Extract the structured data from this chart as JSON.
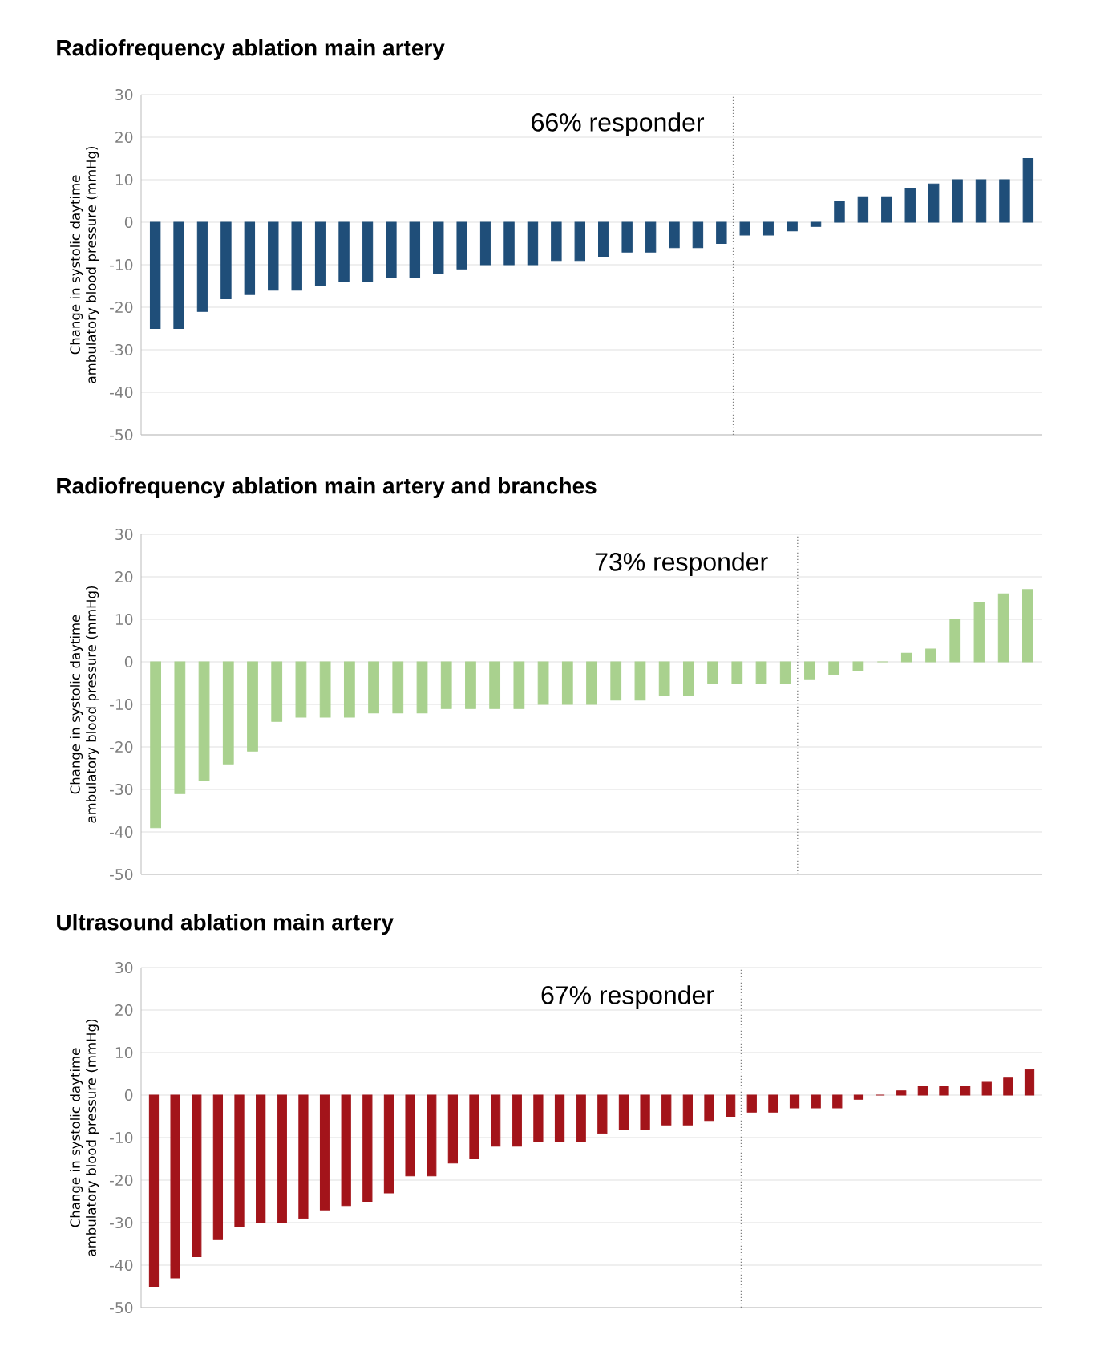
{
  "chart_data": [
    {
      "type": "bar",
      "title": "Radiofrequency ablation main artery",
      "ylabel": "Change in systolic daytime ambulatory blood pressure (mmHg)",
      "categories": [
        null,
        null,
        null,
        null,
        null,
        null,
        null,
        null,
        null,
        null,
        null,
        null,
        null,
        null,
        null,
        null,
        null,
        null,
        null,
        null,
        null,
        null,
        null,
        null,
        null,
        null,
        null,
        null,
        null,
        null,
        null,
        null,
        null,
        null,
        null,
        null,
        null,
        null
      ],
      "values": [
        -25,
        -25,
        -21,
        -18,
        -17,
        -16,
        -16,
        -15,
        -14,
        -14,
        -13,
        -13,
        -12,
        -11,
        -10,
        -10,
        -10,
        -9,
        -9,
        -8,
        -7,
        -7,
        -6,
        -6,
        -5,
        -3,
        -3,
        -2,
        -1,
        5,
        6,
        6,
        8,
        9,
        10,
        10,
        10,
        15
      ],
      "color": "#1f4e79",
      "ylim": [
        -50,
        30
      ],
      "yticks": [
        -50,
        -40,
        -30,
        -20,
        -10,
        0,
        10,
        20,
        30
      ],
      "grid": "y",
      "tick_labels": "y",
      "annotations": [
        "66% responder"
      ]
    },
    {
      "type": "bar",
      "title": "Radiofrequency ablation main artery and branches",
      "ylabel": "Change in systolic daytime ambulatory blood pressure (mmHg)",
      "categories": [
        null,
        null,
        null,
        null,
        null,
        null,
        null,
        null,
        null,
        null,
        null,
        null,
        null,
        null,
        null,
        null,
        null,
        null,
        null,
        null,
        null,
        null,
        null,
        null,
        null,
        null,
        null,
        null,
        null,
        null,
        null,
        null,
        null,
        null,
        null,
        null,
        null
      ],
      "values": [
        -39,
        -31,
        -28,
        -24,
        -21,
        -14,
        -13,
        -13,
        -13,
        -12,
        -12,
        -12,
        -11,
        -11,
        -11,
        -11,
        -10,
        -10,
        -10,
        -9,
        -9,
        -8,
        -8,
        -5,
        -5,
        -5,
        -5,
        -4,
        -3,
        -2,
        0,
        2,
        3,
        10,
        14,
        16,
        17
      ],
      "color": "#a9d18e",
      "ylim": [
        -50,
        30
      ],
      "yticks": [
        -50,
        -40,
        -30,
        -20,
        -10,
        0,
        10,
        20,
        30
      ],
      "grid": "y",
      "tick_labels": "y",
      "annotations": [
        "73% responder"
      ]
    },
    {
      "type": "bar",
      "title": "Ultrasound ablation main artery",
      "ylabel": "Change in systolic daytime ambulatory blood pressure (mmHg)",
      "categories": [
        null,
        null,
        null,
        null,
        null,
        null,
        null,
        null,
        null,
        null,
        null,
        null,
        null,
        null,
        null,
        null,
        null,
        null,
        null,
        null,
        null,
        null,
        null,
        null,
        null,
        null,
        null,
        null,
        null,
        null,
        null,
        null,
        null,
        null,
        null,
        null,
        null,
        null,
        null,
        null,
        null,
        null
      ],
      "values": [
        -45,
        -43,
        -38,
        -34,
        -31,
        -30,
        -30,
        -29,
        -27,
        -26,
        -25,
        -23,
        -19,
        -19,
        -16,
        -15,
        -12,
        -12,
        -11,
        -11,
        -11,
        -9,
        -8,
        -8,
        -7,
        -7,
        -6,
        -5,
        -4,
        -4,
        -3,
        -3,
        -3,
        -1,
        0,
        1,
        2,
        2,
        2,
        3,
        4,
        6
      ],
      "color": "#a3141a",
      "ylim": [
        -50,
        30
      ],
      "yticks": [
        -50,
        -40,
        -30,
        -20,
        -10,
        0,
        10,
        20,
        30
      ],
      "grid": "y",
      "tick_labels": "y",
      "annotations": [
        "67% responder"
      ]
    }
  ]
}
